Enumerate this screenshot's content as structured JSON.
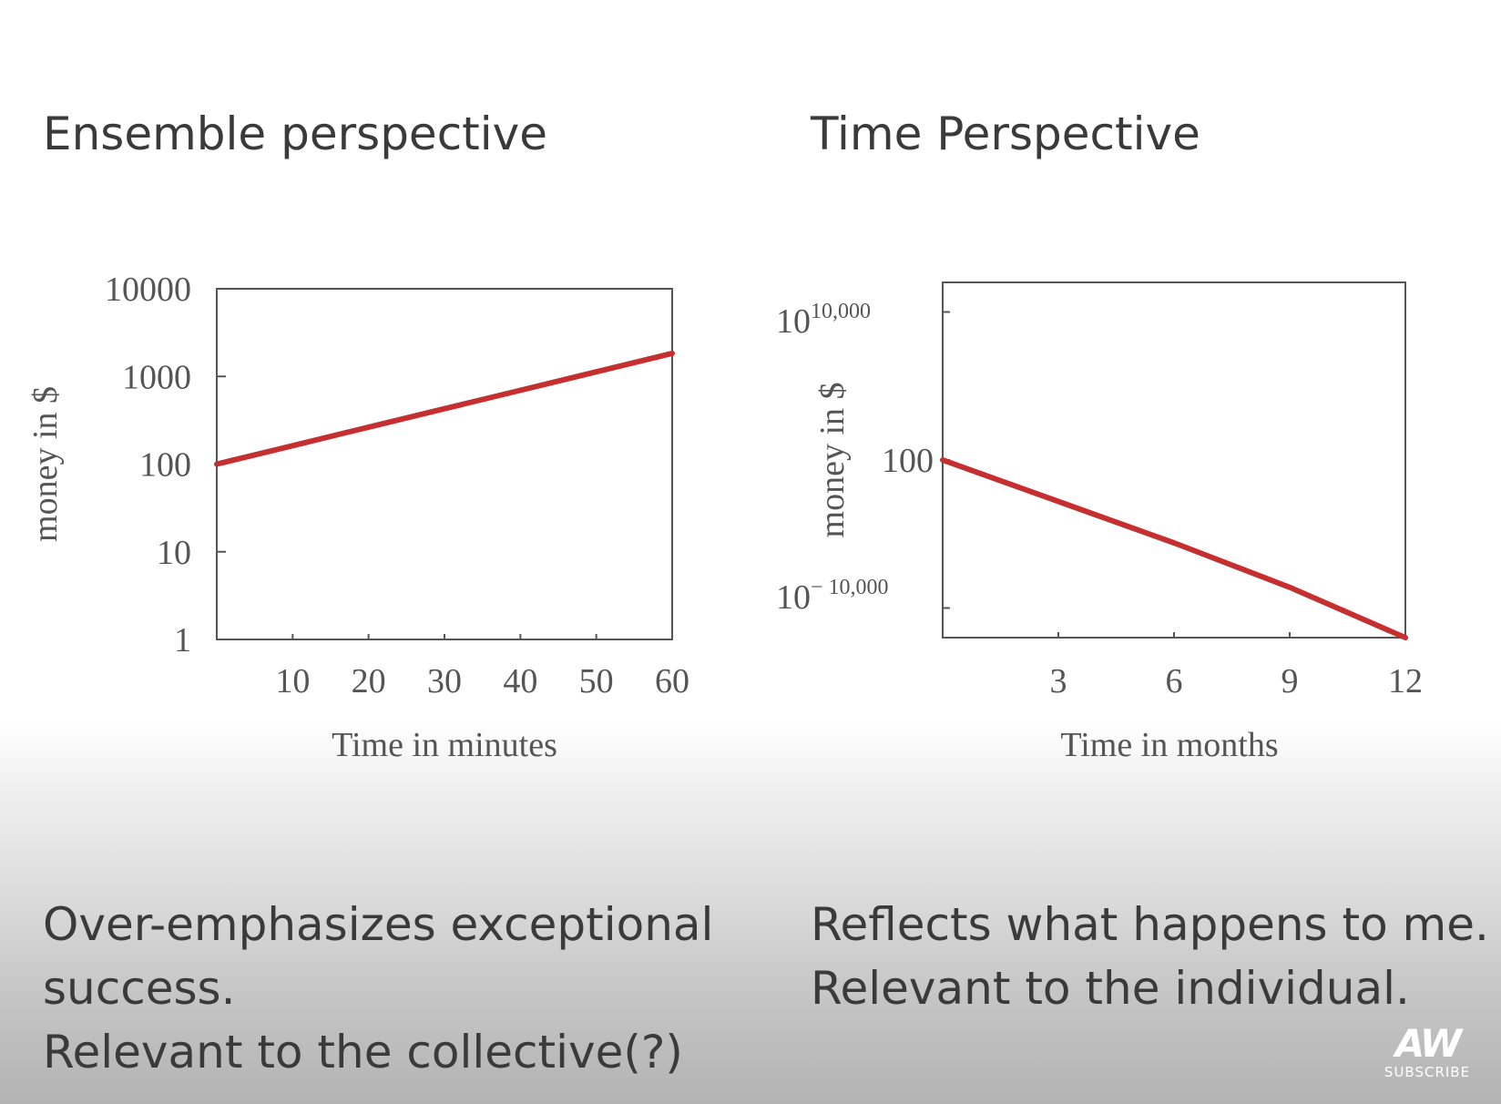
{
  "headings": {
    "left": "Ensemble perspective",
    "right": "Time Perspective"
  },
  "notes": {
    "left": [
      "Over-emphasizes exceptional",
      "success.",
      "Relevant to the collective(?)"
    ],
    "right": [
      "Reflects what happens to me.",
      "Relevant to the individual."
    ]
  },
  "logo": {
    "mark": "AW",
    "subscribe": "SUBSCRIBE"
  },
  "colors": {
    "line": "#c62f2f",
    "axis": "#555555",
    "text": "#3a3a3a"
  },
  "chart_data": [
    {
      "type": "line",
      "title": "Ensemble perspective",
      "xlabel": "Time in minutes",
      "ylabel": "money in $",
      "yscale": "log",
      "xlim": [
        0,
        60
      ],
      "ylim": [
        1,
        10000
      ],
      "xticks": [
        10,
        20,
        30,
        40,
        50,
        60
      ],
      "xtick_labels": [
        "10",
        "20",
        "30",
        "40",
        "50",
        "60"
      ],
      "yticks": [
        1,
        10,
        100,
        1000,
        10000
      ],
      "ytick_labels": [
        "1",
        "10",
        "100",
        "1000",
        "10000"
      ],
      "series": [
        {
          "x": [
            0,
            10,
            20,
            30,
            40,
            50,
            60
          ],
          "y": [
            100,
            162,
            264,
            428,
            695,
            1129,
            1834
          ]
        }
      ],
      "grid": false
    },
    {
      "type": "line",
      "title": "Time Perspective",
      "xlabel": "Time in months",
      "ylabel": "money in $",
      "yscale": "log",
      "ylim_exponent": [
        -12000,
        12000
      ],
      "xlim": [
        0,
        12
      ],
      "xticks": [
        3,
        6,
        9,
        12
      ],
      "xtick_labels": [
        "3",
        "6",
        "9",
        "12"
      ],
      "ytick_exponents": [
        10000,
        2,
        -10000
      ],
      "ytick_labels": [
        {
          "base": "10",
          "sup": "10,000"
        },
        {
          "base": "100",
          "sup": ""
        },
        {
          "base": "10",
          "sup": "− 10,000"
        }
      ],
      "series": [
        {
          "x": [
            0,
            3,
            6,
            9,
            12
          ],
          "log10_y": [
            2,
            -2800,
            -5600,
            -8600,
            -12000
          ]
        }
      ],
      "grid": false
    }
  ]
}
